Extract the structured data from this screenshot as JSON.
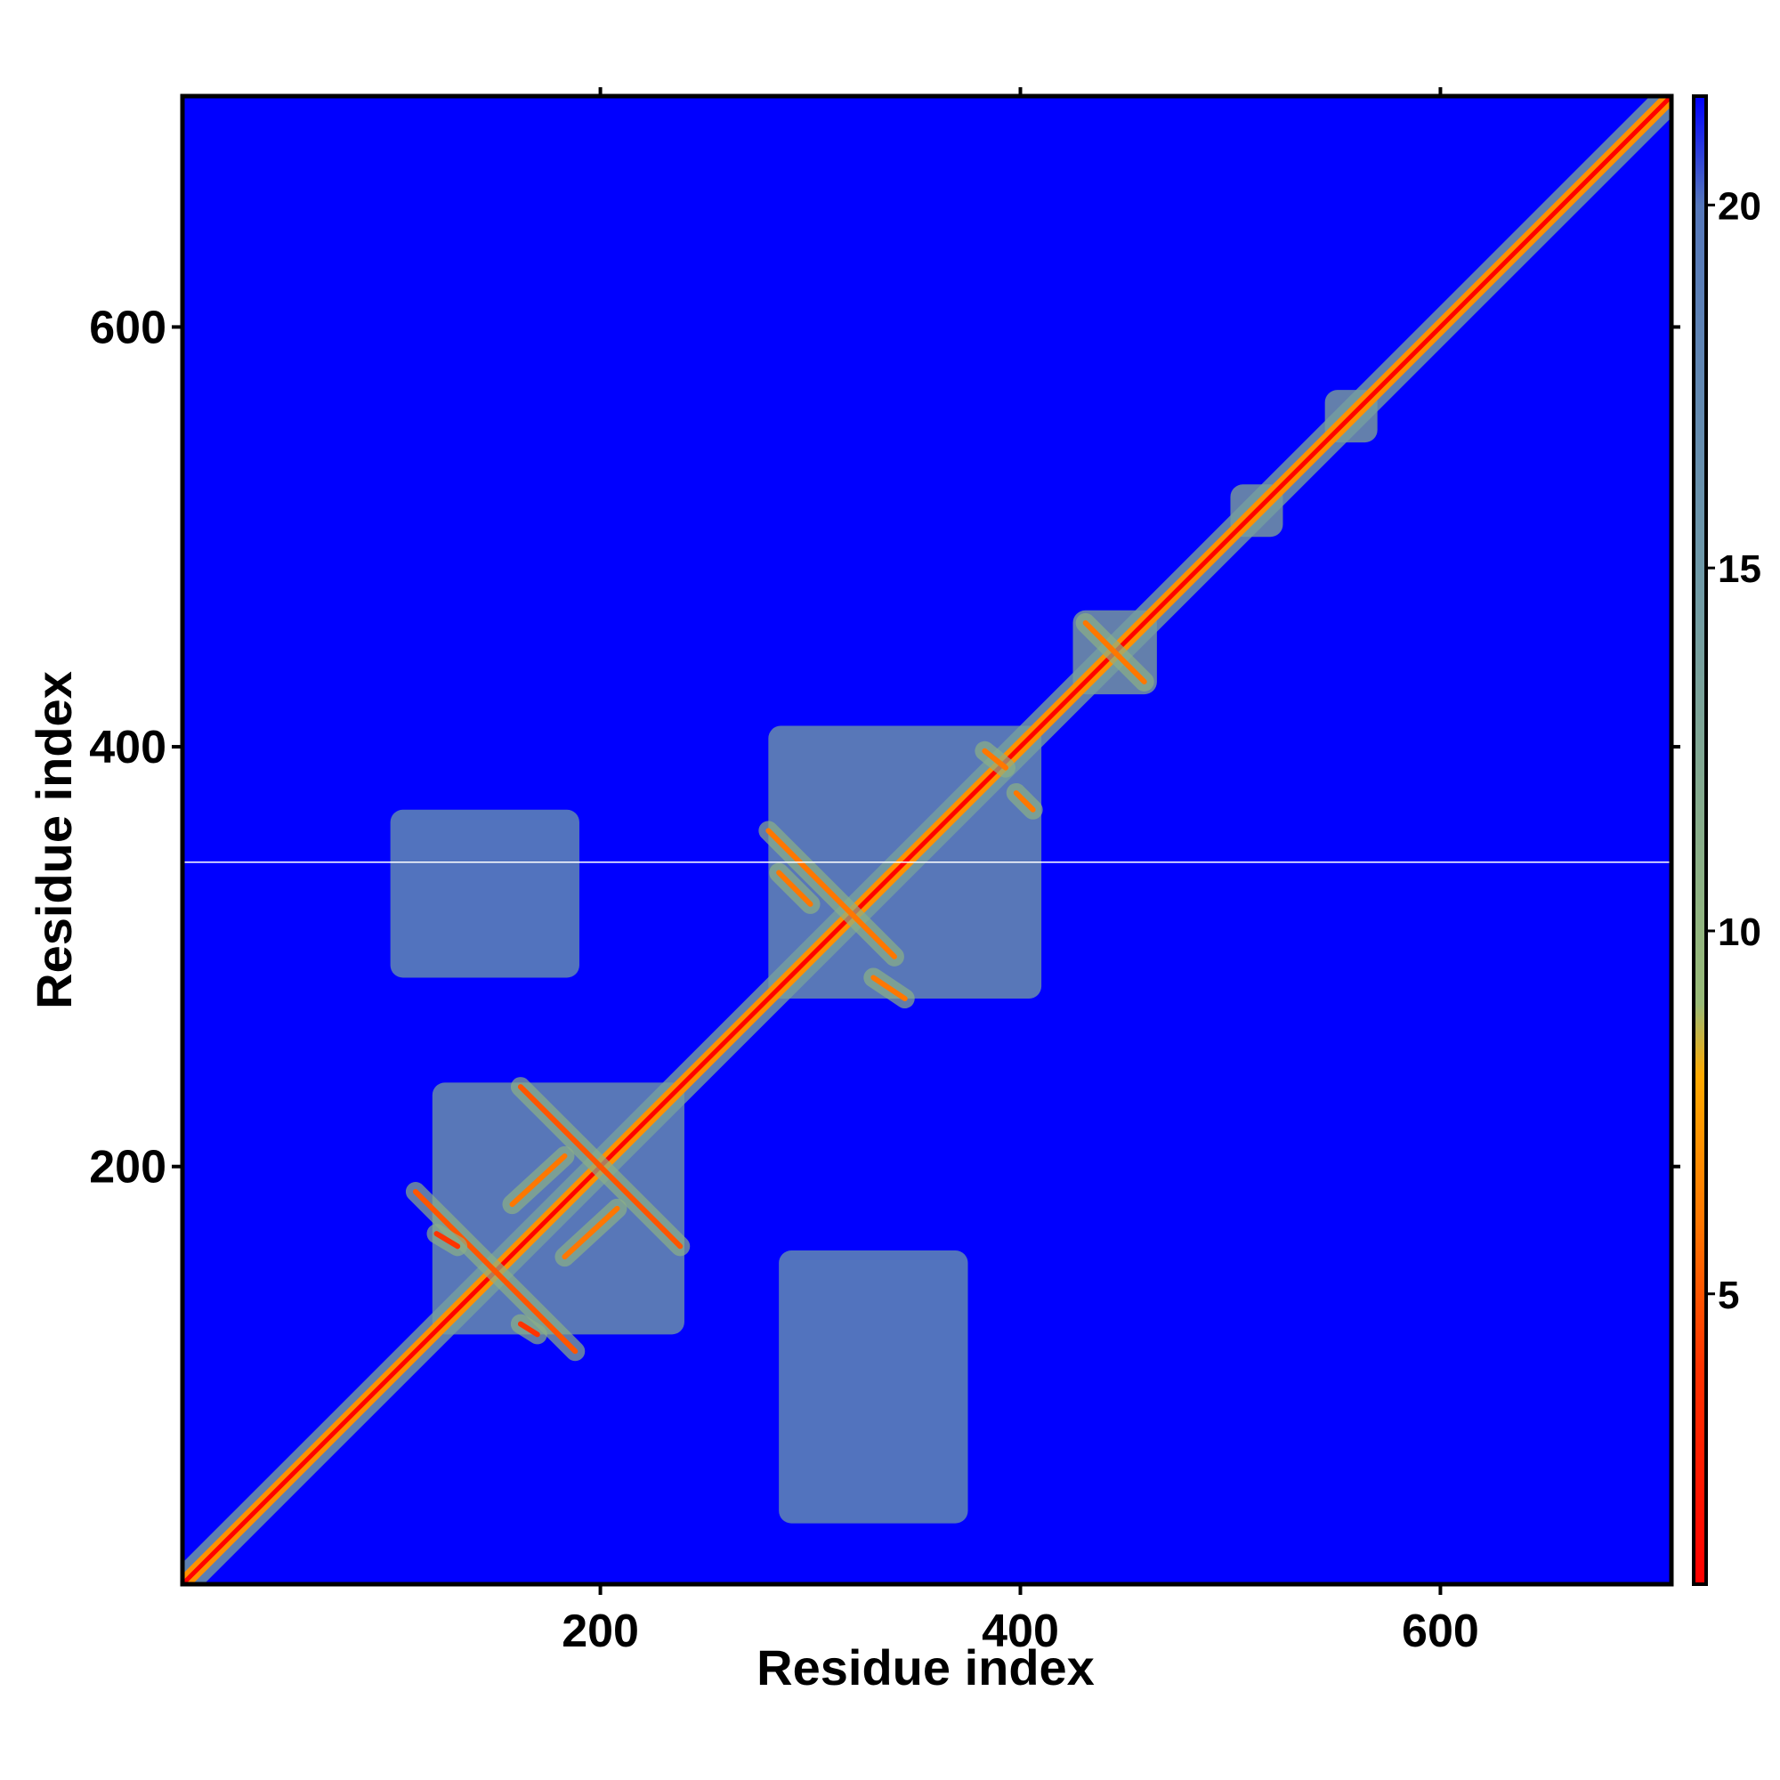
{
  "chart_data": {
    "type": "heatmap",
    "title": "",
    "xlabel": "Residue index",
    "ylabel": "Residue index",
    "xlim": [
      1,
      710
    ],
    "ylim": [
      1,
      710
    ],
    "x_ticks": [
      200,
      400,
      600
    ],
    "y_ticks": [
      200,
      400,
      600
    ],
    "grid": false,
    "colorbar": {
      "ticks": [
        5,
        10,
        15,
        20
      ],
      "range": [
        1,
        21.5
      ],
      "placement": "right",
      "colors": [
        {
          "value": 1,
          "color": "#ff0000"
        },
        {
          "value": 4,
          "color": "#ff3300"
        },
        {
          "value": 6,
          "color": "#ff7700"
        },
        {
          "value": 8,
          "color": "#ffaa00"
        },
        {
          "value": 9,
          "color": "#99bb77"
        },
        {
          "value": 15,
          "color": "#6e99a8"
        },
        {
          "value": 20,
          "color": "#5577bb"
        },
        {
          "value": 21.5,
          "color": "#0000ff"
        }
      ]
    },
    "background_color": "#0000ff",
    "diagonal": {
      "start": 1,
      "end": 710,
      "value": 1
    },
    "contact_lines": [
      {
        "type": "anti",
        "center": [
          150,
          150
        ],
        "half_length": 38,
        "value": 5
      },
      {
        "type": "anti",
        "center": [
          200,
          200
        ],
        "half_length": 38,
        "value": 5
      },
      {
        "type": "anti",
        "center": [
          445,
          445
        ],
        "half_length": 14,
        "value": 6
      },
      {
        "type": "anti",
        "center": [
          310,
          330
        ],
        "half_length": 30,
        "value": 6
      },
      {
        "type": "parallel",
        "x": [
          158,
          183
        ],
        "y": [
          182,
          205
        ],
        "value": 6
      },
      {
        "type": "parallel",
        "x": [
          183,
          208
        ],
        "y": [
          157,
          180
        ],
        "value": 6
      },
      {
        "type": "parallel",
        "x": [
          285,
          300
        ],
        "y": [
          340,
          325
        ],
        "value": 6
      },
      {
        "type": "parallel",
        "x": [
          330,
          345
        ],
        "y": [
          290,
          280
        ],
        "value": 6
      },
      {
        "type": "parallel",
        "x": [
          383,
          393
        ],
        "y": [
          398,
          390
        ],
        "value": 6
      },
      {
        "type": "parallel",
        "x": [
          398,
          406
        ],
        "y": [
          378,
          370
        ],
        "value": 6
      },
      {
        "type": "parallel",
        "x": [
          122,
          132
        ],
        "y": [
          168,
          162
        ],
        "value": 4
      },
      {
        "type": "parallel",
        "x": [
          162,
          170
        ],
        "y": [
          125,
          120
        ],
        "value": 4
      }
    ],
    "contact_regions": [
      {
        "x": [
          120,
          240
        ],
        "y": [
          120,
          240
        ],
        "value": 14
      },
      {
        "x": [
          280,
          410
        ],
        "y": [
          280,
          410
        ],
        "value": 14
      },
      {
        "x": [
          285,
          375
        ],
        "y": [
          30,
          160
        ],
        "value": 15
      },
      {
        "x": [
          100,
          190
        ],
        "y": [
          290,
          370
        ],
        "value": 15
      },
      {
        "x": [
          500,
          525
        ],
        "y": [
          500,
          525
        ],
        "value": 12
      },
      {
        "x": [
          545,
          570
        ],
        "y": [
          545,
          570
        ],
        "value": 12
      },
      {
        "x": [
          425,
          465
        ],
        "y": [
          425,
          465
        ],
        "value": 12
      }
    ],
    "missing_row": 345
  }
}
